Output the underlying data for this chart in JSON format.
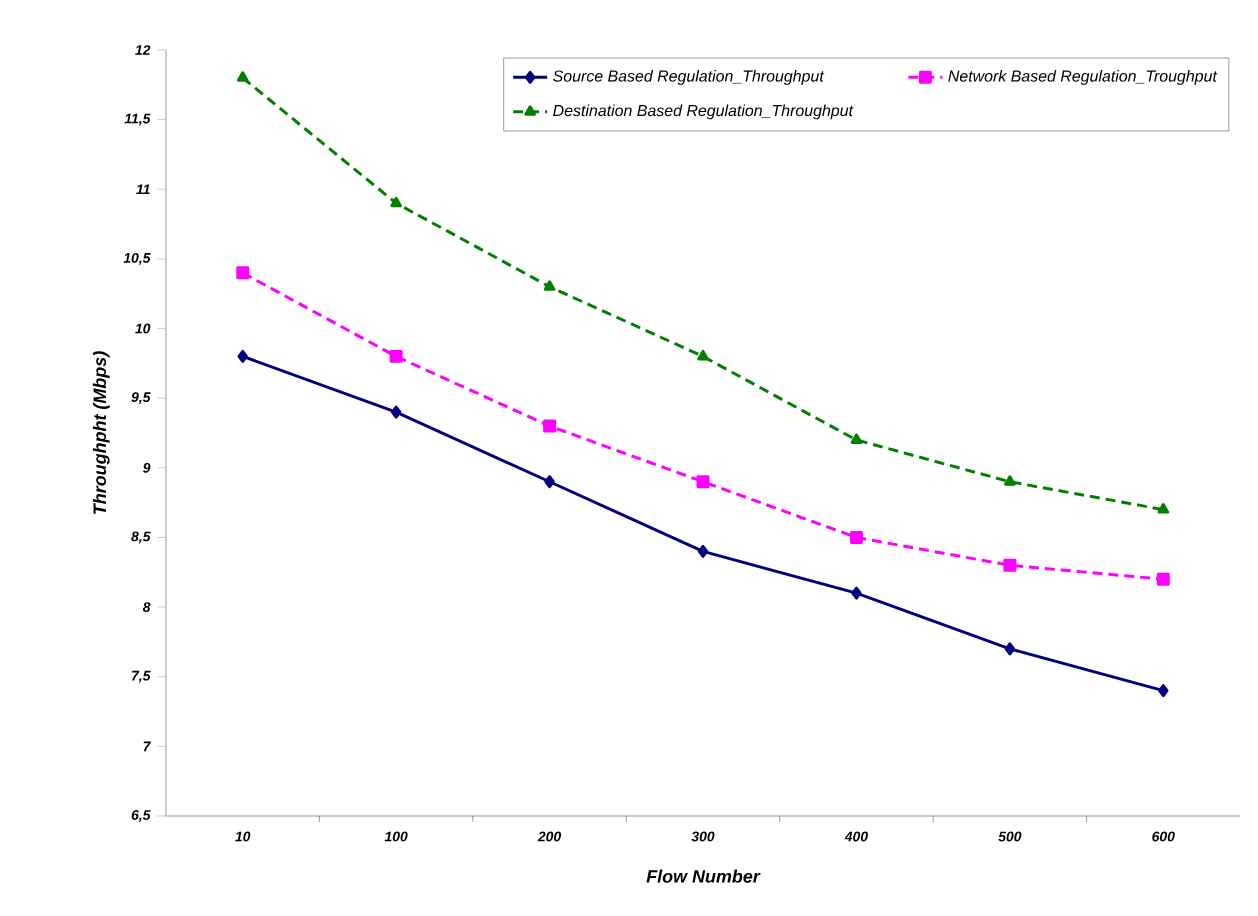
{
  "chart_data": {
    "type": "line",
    "xlabel": "Flow Number",
    "ylabel": "Throughpht (Mbps)",
    "categories": [
      "10",
      "100",
      "200",
      "300",
      "400",
      "500",
      "600"
    ],
    "ylim": [
      6.5,
      12
    ],
    "yticks": [
      {
        "value": 6.5,
        "label": "6,5"
      },
      7,
      {
        "value": 7.5,
        "label": "7,5"
      },
      8,
      {
        "value": 8.5,
        "label": "8,5"
      },
      9,
      {
        "value": 9.5,
        "label": "9,5"
      },
      10,
      {
        "value": 10.5,
        "label": "10,5"
      },
      11,
      {
        "value": 11.5,
        "label": "11,5"
      },
      12
    ],
    "legend": "top right",
    "series": [
      {
        "name": "Source Based Regulation_Throughput",
        "color": "#000080",
        "marker": "diamond",
        "line_style": "solid",
        "values": [
          9.8,
          9.4,
          8.9,
          8.4,
          8.1,
          7.7,
          7.4
        ]
      },
      {
        "name": "Network Based Regulation_Troughput",
        "color": "#ff00ff",
        "marker": "square",
        "line_style": "dashed",
        "values": [
          10.4,
          9.8,
          9.3,
          8.9,
          8.5,
          8.3,
          8.2
        ]
      },
      {
        "name": "Destination Based Regulation_Throughput",
        "color": "#008000",
        "marker": "triangle",
        "line_style": "dashed",
        "values": [
          11.8,
          10.9,
          10.3,
          9.8,
          9.2,
          8.9,
          8.7
        ]
      }
    ]
  }
}
